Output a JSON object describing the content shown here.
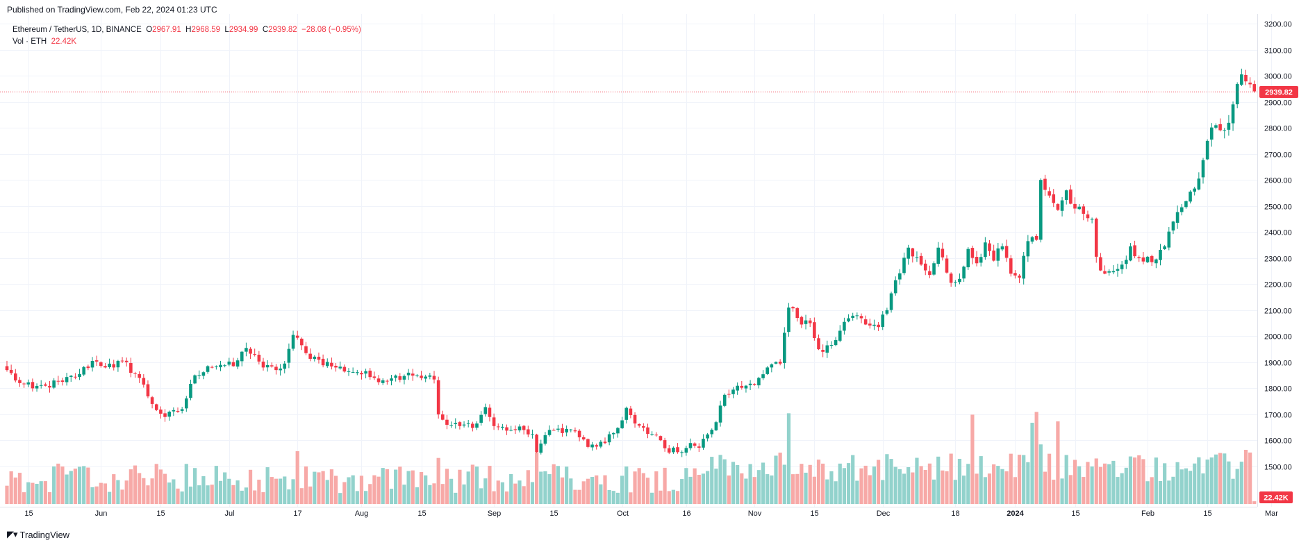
{
  "published": "Published on TradingView.com, Feb 22, 2024 01:23 UTC",
  "legend": {
    "symbol": "Ethereum / TetherUS, 1D, BINANCE",
    "o_label": "O",
    "o_value": "2967.91",
    "h_label": "H",
    "h_value": "2968.59",
    "l_label": "L",
    "l_value": "2934.99",
    "c_label": "C",
    "c_value": "2939.82",
    "change": "−28.08 (−0.95%)",
    "vol_label": "Vol · ETH",
    "vol_value": "22.42K"
  },
  "brand": "TradingView",
  "colors": {
    "up": "#089981",
    "down": "#f23645",
    "vol_up": "#92d2cc",
    "vol_down": "#f7a9a7",
    "grid": "#f0f3fa"
  },
  "chart_data": {
    "type": "candlestick",
    "symbol": "ETHUSDT",
    "interval": "1D",
    "y_ticks": [
      "3200.00",
      "3100.00",
      "3000.00",
      "2900.00",
      "2800.00",
      "2700.00",
      "2600.00",
      "2500.00",
      "2400.00",
      "2300.00",
      "2200.00",
      "2100.00",
      "2000.00",
      "1900.00",
      "1800.00",
      "1700.00",
      "1600.00",
      "1500.00"
    ],
    "ylim": [
      1445,
      3200
    ],
    "x_ticks": [
      {
        "label": "15",
        "index": 5
      },
      {
        "label": "Jun",
        "index": 22
      },
      {
        "label": "15",
        "index": 36
      },
      {
        "label": "Jul",
        "index": 52
      },
      {
        "label": "17",
        "index": 68
      },
      {
        "label": "Aug",
        "index": 83
      },
      {
        "label": "15",
        "index": 97
      },
      {
        "label": "Sep",
        "index": 114
      },
      {
        "label": "15",
        "index": 128
      },
      {
        "label": "Oct",
        "index": 144
      },
      {
        "label": "16",
        "index": 159
      },
      {
        "label": "Nov",
        "index": 175
      },
      {
        "label": "15",
        "index": 189
      },
      {
        "label": "Dec",
        "index": 205
      },
      {
        "label": "18",
        "index": 222
      },
      {
        "label": "2024",
        "index": 236
      },
      {
        "label": "15",
        "index": 250
      },
      {
        "label": "Feb",
        "index": 267
      },
      {
        "label": "15",
        "index": 281
      },
      {
        "label": "Mar",
        "index": 296
      }
    ],
    "last_price": 2939.82,
    "last_price_label": "2939.82",
    "last_volume_label": "22.42K",
    "waypoints": [
      [
        0,
        1870
      ],
      [
        3,
        1820
      ],
      [
        6,
        1800
      ],
      [
        9,
        1810
      ],
      [
        13,
        1825
      ],
      [
        17,
        1855
      ],
      [
        20,
        1905
      ],
      [
        25,
        1880
      ],
      [
        27,
        1905
      ],
      [
        31,
        1840
      ],
      [
        34,
        1740
      ],
      [
        37,
        1690
      ],
      [
        41,
        1720
      ],
      [
        44,
        1850
      ],
      [
        47,
        1885
      ],
      [
        50,
        1890
      ],
      [
        53,
        1885
      ],
      [
        56,
        1955
      ],
      [
        58,
        1930
      ],
      [
        60,
        1880
      ],
      [
        63,
        1870
      ],
      [
        65,
        1895
      ],
      [
        67,
        2005
      ],
      [
        70,
        1935
      ],
      [
        73,
        1910
      ],
      [
        77,
        1880
      ],
      [
        82,
        1862
      ],
      [
        86,
        1840
      ],
      [
        90,
        1838
      ],
      [
        94,
        1860
      ],
      [
        98,
        1845
      ],
      [
        100,
        1834
      ],
      [
        101,
        1700
      ],
      [
        103,
        1660
      ],
      [
        106,
        1655
      ],
      [
        110,
        1665
      ],
      [
        112,
        1728
      ],
      [
        114,
        1655
      ],
      [
        118,
        1640
      ],
      [
        121,
        1640
      ],
      [
        123,
        1624
      ],
      [
        124,
        1555
      ],
      [
        126,
        1620
      ],
      [
        129,
        1645
      ],
      [
        133,
        1635
      ],
      [
        136,
        1575
      ],
      [
        140,
        1590
      ],
      [
        143,
        1648
      ],
      [
        145,
        1725
      ],
      [
        147,
        1665
      ],
      [
        150,
        1625
      ],
      [
        152,
        1620
      ],
      [
        154,
        1570
      ],
      [
        157,
        1555
      ],
      [
        160,
        1590
      ],
      [
        162,
        1572
      ],
      [
        164,
        1623
      ],
      [
        166,
        1670
      ],
      [
        168,
        1775
      ],
      [
        170,
        1795
      ],
      [
        173,
        1810
      ],
      [
        176,
        1840
      ],
      [
        178,
        1880
      ],
      [
        181,
        1895
      ],
      [
        183,
        2110
      ],
      [
        186,
        2045
      ],
      [
        188,
        2050
      ],
      [
        190,
        1950
      ],
      [
        192,
        1965
      ],
      [
        194,
        1985
      ],
      [
        196,
        2055
      ],
      [
        199,
        2080
      ],
      [
        201,
        2045
      ],
      [
        204,
        2035
      ],
      [
        206,
        2100
      ],
      [
        208,
        2215
      ],
      [
        211,
        2340
      ],
      [
        214,
        2275
      ],
      [
        216,
        2235
      ],
      [
        218,
        2340
      ],
      [
        221,
        2205
      ],
      [
        223,
        2220
      ],
      [
        225,
        2335
      ],
      [
        227,
        2280
      ],
      [
        229,
        2360
      ],
      [
        231,
        2290
      ],
      [
        233,
        2345
      ],
      [
        235,
        2240
      ],
      [
        237,
        2225
      ],
      [
        239,
        2365
      ],
      [
        241,
        2370
      ],
      [
        242,
        2600
      ],
      [
        244,
        2540
      ],
      [
        246,
        2485
      ],
      [
        248,
        2560
      ],
      [
        250,
        2490
      ],
      [
        252,
        2470
      ],
      [
        254,
        2450
      ],
      [
        255,
        2305
      ],
      [
        257,
        2240
      ],
      [
        259,
        2250
      ],
      [
        261,
        2275
      ],
      [
        263,
        2345
      ],
      [
        265,
        2300
      ],
      [
        267,
        2305
      ],
      [
        269,
        2295
      ],
      [
        271,
        2345
      ],
      [
        273,
        2440
      ],
      [
        275,
        2495
      ],
      [
        277,
        2555
      ],
      [
        279,
        2605
      ],
      [
        281,
        2750
      ],
      [
        283,
        2810
      ],
      [
        285,
        2790
      ],
      [
        287,
        2890
      ],
      [
        289,
        3005
      ],
      [
        291,
        2967
      ],
      [
        292,
        2940
      ]
    ],
    "volume_spikes": [
      {
        "index": 68,
        "value": 3.9
      },
      {
        "index": 101,
        "value": 3.4
      },
      {
        "index": 124,
        "value": 3.8
      },
      {
        "index": 183,
        "value": 6.7
      },
      {
        "index": 226,
        "value": 6.6
      },
      {
        "index": 240,
        "value": 6.0
      },
      {
        "index": 241,
        "value": 6.8
      },
      {
        "index": 242,
        "value": 4.4
      },
      {
        "index": 246,
        "value": 6.1
      },
      {
        "index": 290,
        "value": 4.0
      },
      {
        "index": 291,
        "value": 3.8
      },
      {
        "index": 292,
        "value": 0.2
      }
    ],
    "volume_ylim": [
      0,
      8
    ]
  }
}
